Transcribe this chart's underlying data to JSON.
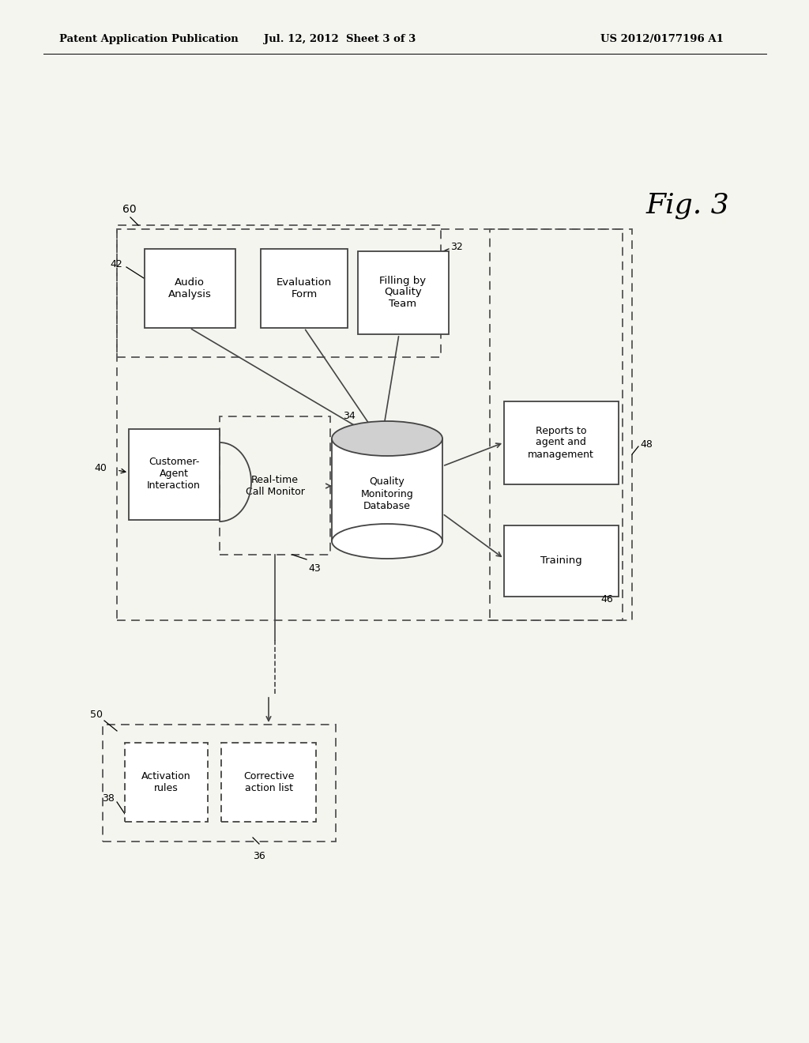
{
  "header_left": "Patent Application Publication",
  "header_center": "Jul. 12, 2012  Sheet 3 of 3",
  "header_right": "US 2012/0177196 A1",
  "fig_label": "Fig. 3",
  "background_color": "#f5f5f0"
}
